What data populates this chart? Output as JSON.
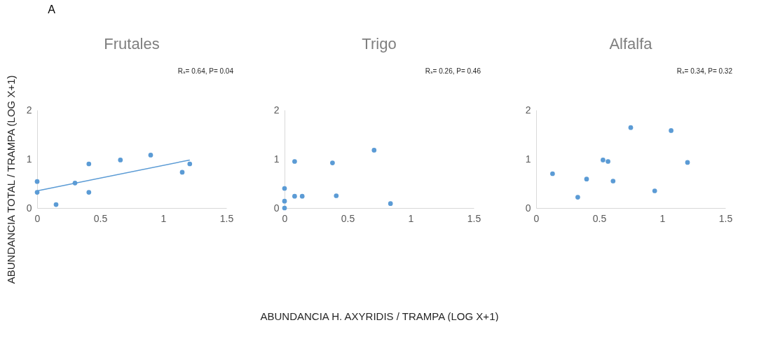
{
  "chart_data": [
    {
      "type": "scatter",
      "title": "Frutales",
      "ylabel": "ABUNDANCIA TOTAL / TRAMPA (LOG X+1)",
      "annotations": [
        "A",
        "Rₛ= 0.64, P= 0.04"
      ],
      "xlim": [
        0,
        1.5
      ],
      "ylim": [
        0,
        2
      ],
      "xticks": [
        0,
        0.5,
        1,
        1.5
      ],
      "yticks": [
        0,
        1,
        2
      ],
      "grid": false,
      "series": [
        {
          "type": "scatter",
          "marker": "circle",
          "color": "#5b9bd5",
          "x": [
            0,
            0,
            0.15,
            0.3,
            0.41,
            0.41,
            0.66,
            0.9,
            1.15,
            1.21
          ],
          "values": [
            0.54,
            0.32,
            0.07,
            0.51,
            0.9,
            0.32,
            0.98,
            1.08,
            0.73,
            0.9
          ]
        },
        {
          "type": "line",
          "color": "#5b9bd5",
          "x": [
            0,
            1.21
          ],
          "values": [
            0.35,
            0.98
          ]
        }
      ]
    },
    {
      "type": "scatter",
      "title": "Trigo",
      "xlabel": "ABUNDANCIA H. AXYRIDIS / TRAMPA (LOG X+1)",
      "annotations": [
        "Rₛ= 0.26, P= 0.46"
      ],
      "xlim": [
        0,
        1.5
      ],
      "ylim": [
        0,
        2
      ],
      "xticks": [
        0,
        0.5,
        1,
        1.5
      ],
      "yticks": [
        0,
        1,
        2
      ],
      "grid": false,
      "series": [
        {
          "type": "scatter",
          "marker": "circle",
          "color": "#5b9bd5",
          "x": [
            0,
            0,
            0,
            0.08,
            0.08,
            0.14,
            0.38,
            0.41,
            0.71,
            0.84
          ],
          "values": [
            0.4,
            0.14,
            0,
            0.95,
            0.24,
            0.24,
            0.92,
            0.25,
            1.18,
            0.09
          ]
        }
      ]
    },
    {
      "type": "scatter",
      "title": "Alfalfa",
      "annotations": [
        "Rₛ= 0.34, P= 0.32"
      ],
      "xlim": [
        0,
        1.5
      ],
      "ylim": [
        0,
        2
      ],
      "xticks": [
        0,
        0.5,
        1,
        1.5
      ],
      "yticks": [
        0,
        1,
        2
      ],
      "grid": false,
      "series": [
        {
          "type": "scatter",
          "marker": "circle",
          "color": "#5b9bd5",
          "x": [
            0.13,
            0.33,
            0.4,
            0.53,
            0.57,
            0.61,
            0.75,
            0.94,
            1.07,
            1.2
          ],
          "values": [
            0.7,
            0.22,
            0.59,
            0.98,
            0.95,
            0.55,
            1.64,
            0.35,
            1.58,
            0.93
          ]
        }
      ]
    }
  ]
}
